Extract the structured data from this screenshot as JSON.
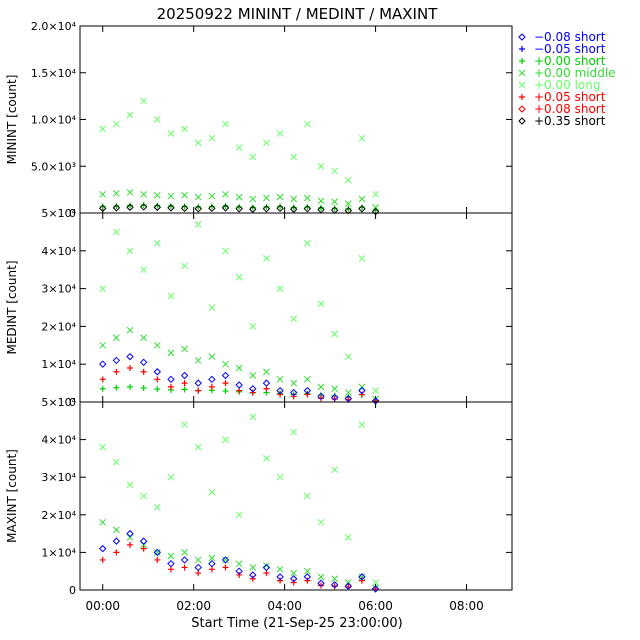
{
  "title": "20250922 MININT / MEDINT / MAXINT",
  "xlabel": "Start Time (21-Sep-25 23:00:00)",
  "x_ticks": [
    "00:00",
    "02:00",
    "04:00",
    "06:00",
    "08:00"
  ],
  "legend": [
    {
      "marker": "diamond",
      "color": "#0000ff",
      "label": "−0.08 short"
    },
    {
      "marker": "plus",
      "color": "#0000ff",
      "label": "−0.05 short"
    },
    {
      "marker": "plus",
      "color": "#00d000",
      "label": "+0.00 short"
    },
    {
      "marker": "cross",
      "color": "#33dd33",
      "label": "+0.00 middle"
    },
    {
      "marker": "cross",
      "color": "#66ff66",
      "label": "+0.00 long"
    },
    {
      "marker": "plus",
      "color": "#ff0000",
      "label": "+0.05 short"
    },
    {
      "marker": "diamond",
      "color": "#ff0000",
      "label": "+0.08 short"
    },
    {
      "marker": "diamond",
      "color": "#000000",
      "label": "+0.35 short"
    }
  ],
  "chart_data": [
    {
      "type": "scatter",
      "ylabel": "MININT [count]",
      "xlim": [
        -0.5,
        9.0
      ],
      "ylim": [
        0,
        20000
      ],
      "y_ticks": [
        "0",
        "5.0×10³",
        "1.0×10⁴",
        "1.5×10⁴",
        "2.0×10⁴"
      ],
      "y_tick_values": [
        0,
        5000,
        10000,
        15000,
        20000
      ],
      "series": [
        {
          "label_ref": 4,
          "x": [
            0.0,
            0.3,
            0.6,
            0.9,
            1.2,
            1.5,
            1.8,
            2.1,
            2.4,
            2.7,
            3.0,
            3.3,
            3.6,
            3.9,
            4.2,
            4.5,
            4.8,
            5.1,
            5.4,
            5.7,
            6.0
          ],
          "y": [
            9000,
            9500,
            10500,
            12000,
            10000,
            8500,
            9000,
            7500,
            8000,
            9500,
            7000,
            6000,
            7500,
            8500,
            6000,
            9500,
            5000,
            4500,
            3500,
            8000,
            2000
          ]
        },
        {
          "label_ref": 3,
          "x": [
            0.0,
            0.3,
            0.6,
            0.9,
            1.2,
            1.5,
            1.8,
            2.1,
            2.4,
            2.7,
            3.0,
            3.3,
            3.6,
            3.9,
            4.2,
            4.5,
            4.8,
            5.1,
            5.4,
            5.7,
            6.0
          ],
          "y": [
            2000,
            2100,
            2200,
            2000,
            1900,
            1800,
            1900,
            1700,
            1800,
            2000,
            1700,
            1500,
            1600,
            1700,
            1500,
            1600,
            1300,
            1200,
            1000,
            1500,
            600
          ]
        },
        {
          "label_ref": 2,
          "x": [
            0.0,
            0.3,
            0.6,
            0.9,
            1.2,
            1.5,
            1.8,
            2.1,
            2.4,
            2.7,
            3.0,
            3.3,
            3.6,
            3.9,
            4.2,
            4.5,
            4.8,
            5.1,
            5.4,
            5.7,
            6.0
          ],
          "y": [
            700,
            750,
            800,
            850,
            800,
            750,
            700,
            650,
            700,
            750,
            650,
            600,
            650,
            700,
            600,
            650,
            550,
            500,
            450,
            600,
            300
          ]
        },
        {
          "label_ref": 7,
          "x": [
            0.0,
            0.3,
            0.6,
            0.9,
            1.2,
            1.5,
            1.8,
            2.1,
            2.4,
            2.7,
            3.0,
            3.3,
            3.6,
            3.9,
            4.2,
            4.5,
            4.8,
            5.1,
            5.4,
            5.7,
            6.0
          ],
          "y": [
            500,
            550,
            600,
            650,
            600,
            550,
            500,
            450,
            500,
            550,
            450,
            400,
            450,
            500,
            400,
            450,
            350,
            300,
            250,
            450,
            150
          ]
        }
      ]
    },
    {
      "type": "scatter",
      "ylabel": "MEDINT [count]",
      "xlim": [
        -0.5,
        9.0
      ],
      "ylim": [
        0,
        50000
      ],
      "y_ticks": [
        "0",
        "1×10⁴",
        "2×10⁴",
        "3×10⁴",
        "4×10⁴",
        "5×10⁴"
      ],
      "y_tick_values": [
        0,
        10000,
        20000,
        30000,
        40000,
        50000
      ],
      "series": [
        {
          "label_ref": 4,
          "x": [
            0.0,
            0.3,
            0.6,
            0.9,
            1.2,
            1.5,
            1.8,
            2.1,
            2.4,
            2.7,
            3.0,
            3.3,
            3.6,
            3.9,
            4.2,
            4.5,
            4.8,
            5.1,
            5.4,
            5.7,
            6.0
          ],
          "y": [
            30000,
            45000,
            40000,
            35000,
            42000,
            28000,
            36000,
            47000,
            25000,
            40000,
            33000,
            20000,
            38000,
            30000,
            22000,
            42000,
            26000,
            18000,
            12000,
            38000,
            3000
          ]
        },
        {
          "label_ref": 3,
          "x": [
            0.0,
            0.3,
            0.6,
            0.9,
            1.2,
            1.5,
            1.8,
            2.1,
            2.4,
            2.7,
            3.0,
            3.3,
            3.6,
            3.9,
            4.2,
            4.5,
            4.8,
            5.1,
            5.4,
            5.7,
            6.0
          ],
          "y": [
            15000,
            17000,
            19000,
            17000,
            15000,
            13000,
            14000,
            11000,
            12000,
            10000,
            9000,
            7000,
            8000,
            6000,
            5000,
            6000,
            4000,
            3500,
            2500,
            4000,
            800
          ]
        },
        {
          "label_ref": 2,
          "x": [
            0.0,
            0.3,
            0.6,
            0.9,
            1.2,
            1.5,
            1.8,
            2.1,
            2.4,
            2.7,
            3.0,
            3.3,
            3.6,
            3.9,
            4.2,
            4.5,
            4.8,
            5.1,
            5.4,
            5.7,
            6.0
          ],
          "y": [
            3500,
            3800,
            4000,
            3700,
            3400,
            3200,
            3300,
            3000,
            3100,
            2900,
            2700,
            2400,
            2500,
            2300,
            2000,
            2200,
            1800,
            1600,
            1300,
            1900,
            400
          ]
        },
        {
          "label_ref": 5,
          "x": [
            0.0,
            0.3,
            0.6,
            0.9,
            1.2,
            1.5,
            1.8,
            2.1,
            2.4,
            2.7,
            3.0,
            3.3,
            3.6,
            3.9,
            4.2,
            4.5,
            4.8,
            5.1,
            5.4,
            5.7,
            6.0
          ],
          "y": [
            6000,
            8000,
            9000,
            8000,
            6000,
            4000,
            5000,
            3000,
            4000,
            5000,
            3000,
            2500,
            3500,
            2000,
            1500,
            2000,
            1000,
            800,
            600,
            2000,
            200
          ]
        },
        {
          "label_ref": 0,
          "x": [
            0.0,
            0.3,
            0.6,
            0.9,
            1.2,
            1.5,
            1.8,
            2.1,
            2.4,
            2.7,
            3.0,
            3.3,
            3.6,
            3.9,
            4.2,
            4.5,
            4.8,
            5.1,
            5.4,
            5.7,
            6.0
          ],
          "y": [
            10000,
            11000,
            12000,
            10500,
            8000,
            6000,
            7000,
            5000,
            6000,
            7000,
            4500,
            3500,
            5000,
            3000,
            2500,
            3000,
            1500,
            1200,
            900,
            3000,
            300
          ]
        }
      ]
    },
    {
      "type": "scatter",
      "ylabel": "MAXINT [count]",
      "xlim": [
        -0.5,
        9.0
      ],
      "ylim": [
        0,
        50000
      ],
      "y_ticks": [
        "0",
        "1×10⁴",
        "2×10⁴",
        "3×10⁴",
        "4×10⁴",
        "5×10⁴"
      ],
      "y_tick_values": [
        0,
        10000,
        20000,
        30000,
        40000,
        50000
      ],
      "series": [
        {
          "label_ref": 4,
          "x": [
            0.0,
            0.3,
            0.6,
            0.9,
            1.2,
            1.5,
            1.8,
            2.1,
            2.4,
            2.7,
            3.0,
            3.3,
            3.6,
            3.9,
            4.2,
            4.5,
            4.8,
            5.1,
            5.4,
            5.7,
            6.0
          ],
          "y": [
            38000,
            34000,
            28000,
            25000,
            22000,
            30000,
            44000,
            38000,
            26000,
            40000,
            20000,
            46000,
            35000,
            30000,
            42000,
            25000,
            18000,
            32000,
            14000,
            44000,
            2000
          ]
        },
        {
          "label_ref": 3,
          "x": [
            0.0,
            0.3,
            0.6,
            0.9,
            1.2,
            1.5,
            1.8,
            2.1,
            2.4,
            2.7,
            3.0,
            3.3,
            3.6,
            3.9,
            4.2,
            4.5,
            4.8,
            5.1,
            5.4,
            5.7,
            6.0
          ],
          "y": [
            18000,
            16000,
            14000,
            12000,
            10000,
            9000,
            10000,
            8000,
            8500,
            8000,
            7000,
            6000,
            6500,
            5500,
            4500,
            5000,
            3500,
            3000,
            2000,
            3500,
            600
          ]
        },
        {
          "label_ref": 5,
          "x": [
            0.0,
            0.3,
            0.6,
            0.9,
            1.2,
            1.5,
            1.8,
            2.1,
            2.4,
            2.7,
            3.0,
            3.3,
            3.6,
            3.9,
            4.2,
            4.5,
            4.8,
            5.1,
            5.4,
            5.7,
            6.0
          ],
          "y": [
            8000,
            10000,
            12000,
            11000,
            8000,
            5500,
            6000,
            4500,
            5500,
            6000,
            4000,
            3000,
            4500,
            2500,
            2000,
            2500,
            1200,
            1000,
            800,
            2500,
            200
          ]
        },
        {
          "label_ref": 0,
          "x": [
            0.0,
            0.3,
            0.6,
            0.9,
            1.2,
            1.5,
            1.8,
            2.1,
            2.4,
            2.7,
            3.0,
            3.3,
            3.6,
            3.9,
            4.2,
            4.5,
            4.8,
            5.1,
            5.4,
            5.7,
            6.0
          ],
          "y": [
            11000,
            13000,
            15000,
            13000,
            10000,
            7000,
            8000,
            6000,
            7000,
            8000,
            5000,
            4000,
            6000,
            3500,
            3000,
            3500,
            1800,
            1400,
            1000,
            3500,
            300
          ]
        }
      ]
    }
  ]
}
